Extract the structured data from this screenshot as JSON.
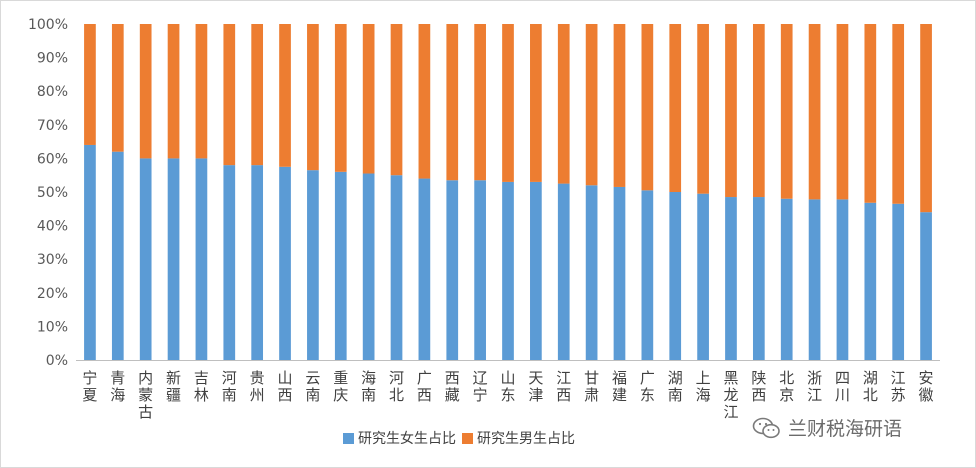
{
  "chart_data": {
    "type": "bar",
    "stacked": true,
    "percent": true,
    "categories": [
      "宁夏",
      "青海",
      "内蒙古",
      "新疆",
      "吉林",
      "河南",
      "贵州",
      "山西",
      "云南",
      "重庆",
      "海南",
      "河北",
      "广西",
      "西藏",
      "辽宁",
      "山东",
      "天津",
      "江西",
      "甘肃",
      "福建",
      "广东",
      "湖南",
      "上海",
      "黑龙江",
      "陕西",
      "北京",
      "浙江",
      "四川",
      "湖北",
      "江苏",
      "安徽"
    ],
    "series": [
      {
        "name": "研究生女生占比",
        "color": "#5b9bd5",
        "values": [
          0.64,
          0.62,
          0.6,
          0.6,
          0.6,
          0.58,
          0.58,
          0.575,
          0.565,
          0.56,
          0.555,
          0.55,
          0.54,
          0.535,
          0.535,
          0.53,
          0.53,
          0.525,
          0.52,
          0.515,
          0.505,
          0.5,
          0.495,
          0.485,
          0.485,
          0.48,
          0.478,
          0.478,
          0.468,
          0.465,
          0.44
        ]
      },
      {
        "name": "研究生男生占比",
        "color": "#ed7d31",
        "values": [
          0.36,
          0.38,
          0.4,
          0.4,
          0.4,
          0.42,
          0.42,
          0.425,
          0.435,
          0.44,
          0.445,
          0.45,
          0.46,
          0.465,
          0.465,
          0.47,
          0.47,
          0.475,
          0.48,
          0.485,
          0.495,
          0.5,
          0.505,
          0.515,
          0.515,
          0.52,
          0.522,
          0.522,
          0.532,
          0.535,
          0.56
        ]
      }
    ],
    "ylim": [
      0,
      1
    ],
    "yticks": [
      "0%",
      "10%",
      "20%",
      "30%",
      "40%",
      "50%",
      "60%",
      "70%",
      "80%",
      "90%",
      "100%"
    ],
    "grid": false,
    "legend": "bottom"
  },
  "watermark": {
    "text": "兰财税海研语",
    "icon": "wechat-icon"
  }
}
